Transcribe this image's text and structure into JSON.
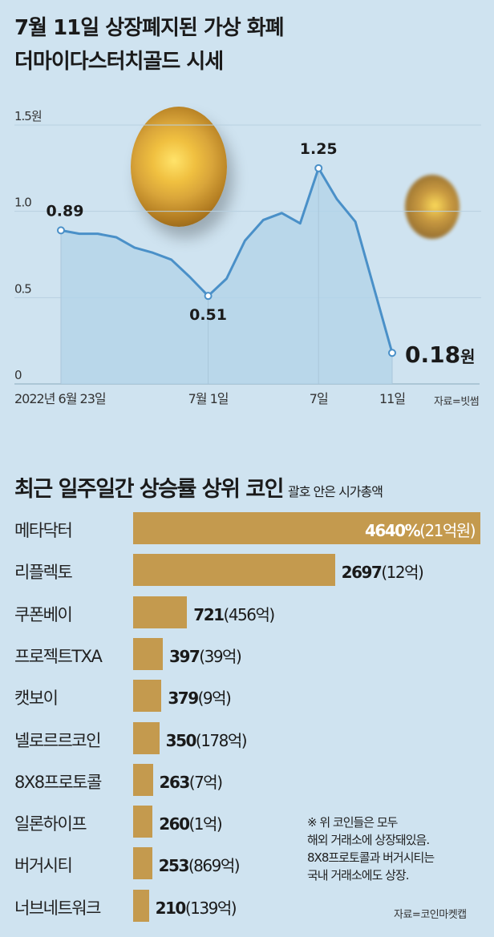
{
  "title_line1": "7월 11일 상장폐지된 가상 화폐",
  "title_line2": "더마이다스터치골드 시세",
  "source1": "자료=빗썸",
  "section2": {
    "title": "최근 일주일간 상승률 상위 코인",
    "subtitle": "괄호 안은 시가총액"
  },
  "note": [
    "※ 위 코인들은 모두",
    "해외 거래소에 상장돼있음.",
    "8X8프로토콜과 버거시티는",
    "국내 거래소에도 상장."
  ],
  "source2": "자료=코인마켓캡",
  "colors": {
    "line": "#4a90c8",
    "area": "#b3d3e8",
    "bar": "#c49a4e",
    "bg": "#cfe3f0"
  },
  "chart_data": [
    {
      "type": "line",
      "title": "더마이다스터치골드 시세",
      "ylabel": "원",
      "ylim": [
        0,
        1.5
      ],
      "yticks": [
        "0",
        "0.5",
        "1.0",
        "1.5원"
      ],
      "xticks": [
        {
          "day": 0,
          "label": "2022년 6월 23일"
        },
        {
          "day": 8,
          "label": "7월 1일"
        },
        {
          "day": 14,
          "label": "7일"
        },
        {
          "day": 18,
          "label": "11일"
        }
      ],
      "x": [
        0,
        1,
        2,
        3,
        4,
        5,
        6,
        7,
        8,
        9,
        10,
        11,
        12,
        13,
        14,
        15,
        16,
        18
      ],
      "y": [
        0.89,
        0.87,
        0.87,
        0.85,
        0.79,
        0.76,
        0.72,
        0.62,
        0.51,
        0.61,
        0.83,
        0.95,
        0.99,
        0.93,
        1.25,
        1.07,
        0.94,
        0.18
      ],
      "annotations": [
        {
          "day": 0,
          "label": "0.89"
        },
        {
          "day": 8,
          "label": "0.51"
        },
        {
          "day": 14,
          "label": "1.25"
        },
        {
          "day": 18,
          "label": "0.18",
          "unit": "원"
        }
      ],
      "grid": true
    },
    {
      "type": "bar",
      "orientation": "horizontal",
      "title": "최근 일주일간 상승률 상위 코인",
      "categories": [
        "메타닥터",
        "리플렉토",
        "쿠폰베이",
        "프로젝트TXA",
        "캣보이",
        "넬로르르코인",
        "8X8프로토콜",
        "일론하이프",
        "버거시티",
        "너브네트워크"
      ],
      "values": [
        4640,
        2697,
        721,
        397,
        379,
        350,
        263,
        260,
        253,
        210
      ],
      "value_labels": [
        "4640%",
        "2697",
        "721",
        "397",
        "379",
        "350",
        "263",
        "260",
        "253",
        "210"
      ],
      "market_caps": [
        "(21억원)",
        "(12억)",
        "(456억)",
        "(39억)",
        "(9억)",
        "(178억)",
        "(7억)",
        "(1억)",
        "(869억)",
        "(139억)"
      ]
    }
  ]
}
